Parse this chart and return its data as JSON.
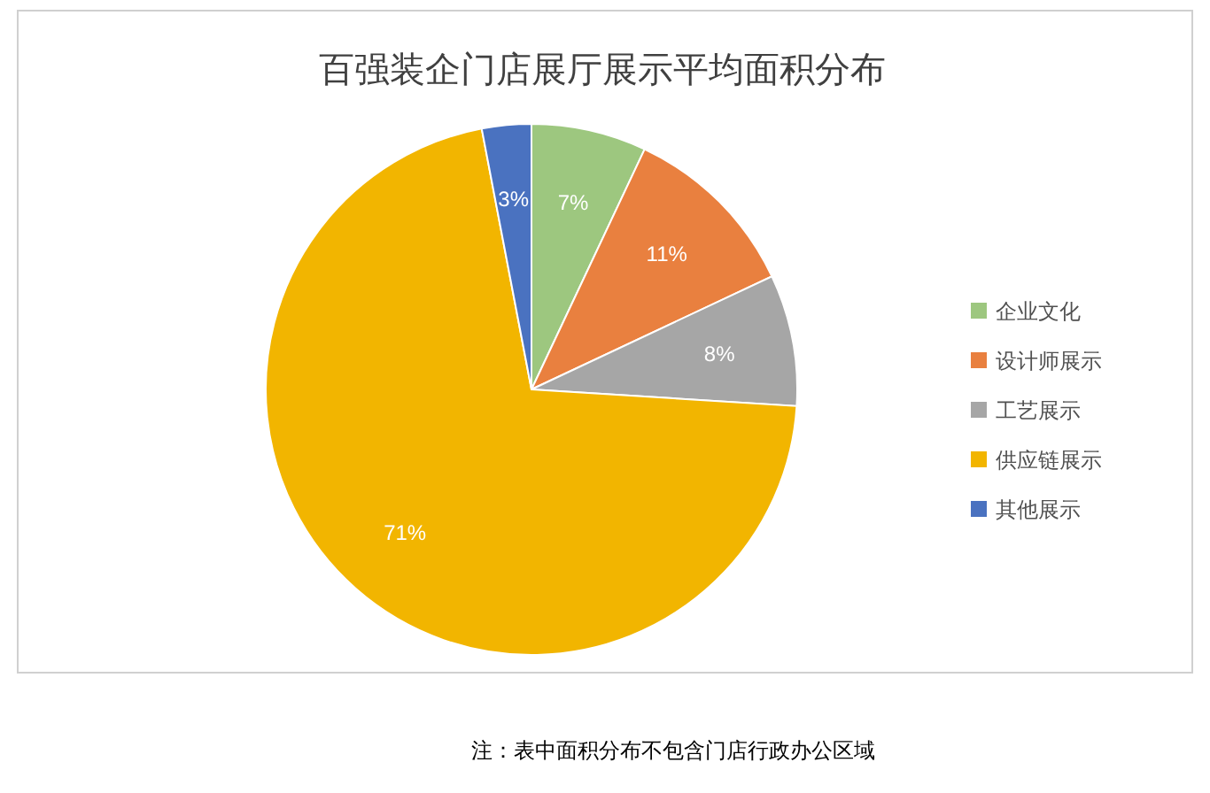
{
  "chart_data": {
    "type": "pie",
    "title": "百强装企门店展厅展示平均面积分布",
    "categories": [
      "企业文化",
      "设计师展示",
      "工艺展示",
      "供应链展示",
      "其他展示"
    ],
    "values": [
      7,
      11,
      8,
      71,
      3
    ],
    "colors": [
      "#9dc77f",
      "#e9803f",
      "#a6a6a6",
      "#f2b500",
      "#4a72c0"
    ],
    "value_labels": [
      "7%",
      "11%",
      "8%",
      "71%",
      "3%"
    ],
    "legend": "right",
    "annotations": [
      "注：表中面积分布不包含门店行政办公区域"
    ]
  }
}
